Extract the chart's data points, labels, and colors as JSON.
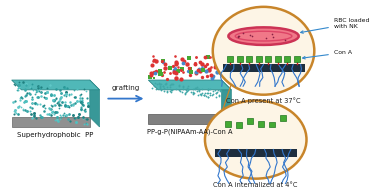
{
  "bg_color": "#ffffff",
  "superhydrophobic_label": "Superhydrophobic  PP",
  "grafted_label": "PP-g-P(NIPAAm-AA)-Con A",
  "grafting_arrow_label": "grafting",
  "top_circle_label": "Con A present at 37°C",
  "bottom_circle_label": "Con A internalized at 4°C",
  "rbc_label": "RBC loaded\nwith NK",
  "con_a_label": "Con A",
  "pp_teal": "#50b8b8",
  "pp_side": "#389898",
  "pp_base": "#888888",
  "pp_dot": "#208888",
  "grafted_red": "#dd3333",
  "grafted_green": "#44aa33",
  "grafted_blue": "#4488cc",
  "circle_edge": "#c8852a",
  "rbc_fill": "#f07888",
  "rbc_edge": "#cc3355",
  "substrate_dark": "#1e2e3e",
  "polymer_blue": "#3377cc",
  "con_a_green": "#44aa33",
  "annotation_blue": "#3388cc",
  "figsize": [
    3.78,
    1.88
  ],
  "dpi": 100
}
